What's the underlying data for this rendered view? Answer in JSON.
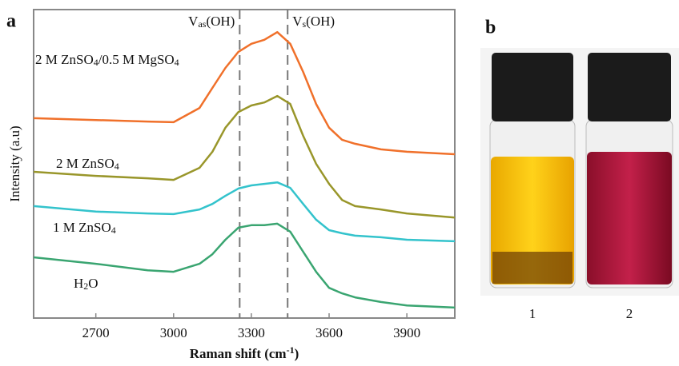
{
  "chart_data": {
    "type": "line",
    "panel_label": "a",
    "xlabel": "Raman shift (cm-1)",
    "ylabel": "Intensity (a.u)",
    "x": [
      2460,
      2700,
      2900,
      3000,
      3100,
      3150,
      3200,
      3250,
      3300,
      3350,
      3400,
      3450,
      3500,
      3550,
      3600,
      3650,
      3700,
      3800,
      3900,
      4085
    ],
    "series": [
      {
        "name": "2 M ZnSO4/0.5 M MgSO4",
        "color": "#f0702a",
        "values": [
          64.8,
          64.2,
          63.7,
          63.5,
          68.1,
          74.6,
          81.1,
          86.3,
          88.9,
          90.2,
          92.7,
          88.9,
          79.8,
          69.4,
          61.7,
          57.8,
          56.5,
          54.7,
          53.9,
          53.1
        ]
      },
      {
        "name": "2 M ZnSO4",
        "color": "#99962a",
        "values": [
          47.4,
          46.1,
          45.3,
          44.8,
          48.7,
          53.9,
          61.7,
          66.8,
          68.9,
          69.9,
          72.0,
          69.4,
          59.1,
          50.0,
          43.5,
          38.3,
          36.3,
          35.2,
          33.9,
          32.6
        ]
      },
      {
        "name": "1 M ZnSO4",
        "color": "#33c3cc",
        "values": [
          36.3,
          34.5,
          33.9,
          33.7,
          35.2,
          37.0,
          39.6,
          42.0,
          43.0,
          43.5,
          44.0,
          42.2,
          37.0,
          31.9,
          28.5,
          27.5,
          26.7,
          26.2,
          25.4,
          24.9
        ]
      },
      {
        "name": "H2O",
        "color": "#3aa571",
        "values": [
          19.7,
          17.6,
          15.5,
          15.0,
          17.6,
          20.7,
          25.4,
          29.3,
          30.1,
          30.1,
          30.6,
          28.0,
          21.5,
          15.0,
          9.8,
          8.0,
          6.7,
          5.2,
          4.1,
          3.4
        ]
      }
    ],
    "annotations": [
      {
        "x": 3255,
        "label": "Vas(OH)"
      },
      {
        "x": 3440,
        "label": "Vs(OH)"
      }
    ],
    "xlim": [
      2460,
      4085
    ],
    "ylim": [
      0,
      100
    ],
    "xticks": [
      2700,
      3000,
      3300,
      3600,
      3900
    ]
  },
  "photo": {
    "panel_label": "b",
    "labels": [
      "1",
      "2"
    ]
  }
}
